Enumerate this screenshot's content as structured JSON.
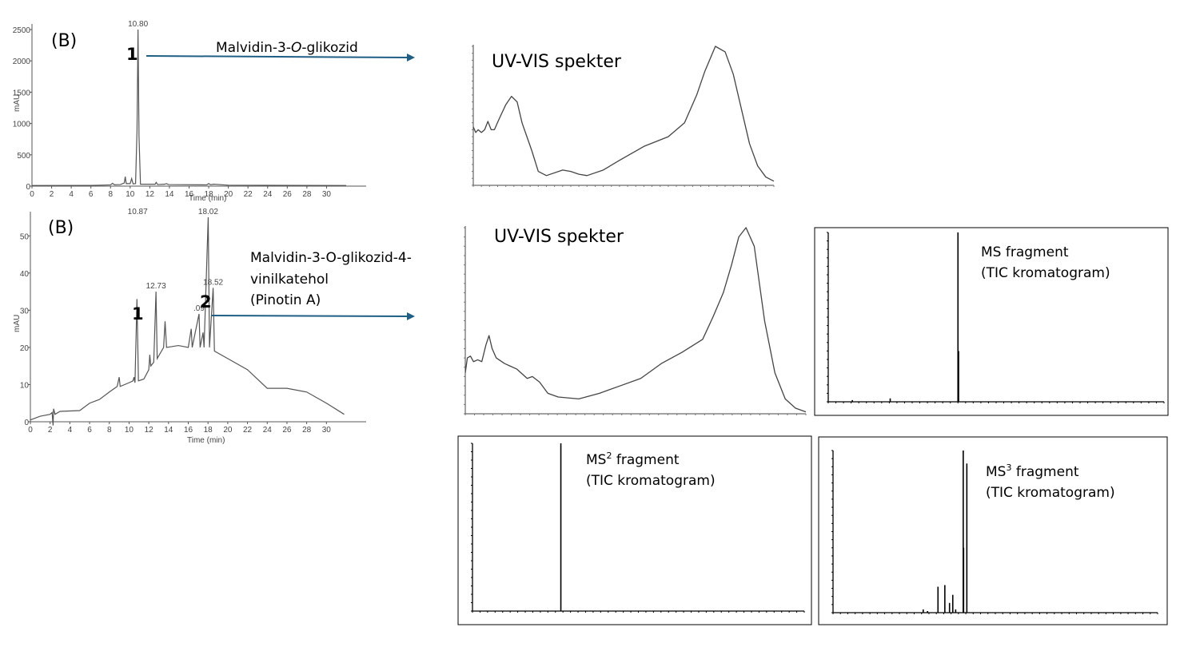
{
  "colors": {
    "arrow": "#1f5f85",
    "trace": "#555555",
    "spectrum": "#000000"
  },
  "chart_data": [
    {
      "id": "chrom1",
      "type": "line",
      "panel_label": "(B)",
      "ylabel": "mAU",
      "xlabel": "Time (min)",
      "xlim": [
        0,
        32
      ],
      "ylim": [
        0,
        2500
      ],
      "xticks": [
        0,
        2,
        4,
        6,
        8,
        10,
        12,
        14,
        16,
        18,
        20,
        22,
        24,
        26,
        28,
        30
      ],
      "yticks": [
        0,
        500,
        1000,
        1500,
        2000,
        2500
      ],
      "peak_labels": [
        {
          "x": 10.8,
          "text": "10.80"
        }
      ],
      "annotations": [
        {
          "marker": "1",
          "text_prefix": "Malvidin-3-",
          "text_italic": "O",
          "text_suffix": "-glikozid"
        }
      ],
      "x": [
        0,
        6,
        7,
        8,
        8.2,
        8.4,
        9,
        9.4,
        9.5,
        9.6,
        10,
        10.15,
        10.3,
        10.55,
        10.7,
        10.8,
        10.9,
        11.05,
        12,
        12.55,
        12.65,
        12.8,
        13.5,
        13.7,
        13.9,
        17.8,
        18,
        18.2,
        18.5,
        20,
        32
      ],
      "y": [
        10,
        12,
        15,
        20,
        45,
        22,
        25,
        50,
        150,
        40,
        40,
        120,
        35,
        40,
        900,
        2500,
        800,
        30,
        30,
        30,
        60,
        25,
        30,
        40,
        25,
        20,
        40,
        22,
        30,
        15,
        10
      ]
    },
    {
      "id": "chrom2",
      "type": "line",
      "panel_label": "(B)",
      "ylabel": "mAU",
      "xlabel": "Time (min)",
      "xlim": [
        0,
        32
      ],
      "ylim": [
        0,
        55
      ],
      "xticks": [
        0,
        2,
        4,
        6,
        8,
        10,
        12,
        14,
        16,
        18,
        20,
        22,
        24,
        26,
        28,
        30
      ],
      "yticks": [
        0,
        10,
        20,
        30,
        40,
        50
      ],
      "peak_labels": [
        {
          "x": 10.87,
          "text": "10.87"
        },
        {
          "x": 12.73,
          "text": "12.73"
        },
        {
          "x": 17.09,
          "text": ".09"
        },
        {
          "x": 18.02,
          "text": "18.02"
        },
        {
          "x": 18.52,
          "text": "18.52"
        }
      ],
      "annotations": [
        {
          "marker": "1"
        },
        {
          "marker": "2",
          "lines": [
            "Malvidin-3-O-glikozid-4-",
            "vinilkatehol",
            "(Pinotin A)"
          ]
        }
      ],
      "x": [
        0,
        1,
        2,
        2.2,
        2.3,
        2.35,
        2.5,
        3,
        5,
        6,
        7,
        8,
        8.8,
        9,
        9.1,
        10,
        10.4,
        10.5,
        10.6,
        10.8,
        10.95,
        11.5,
        12,
        12.1,
        12.2,
        12.5,
        12.73,
        12.85,
        13.5,
        13.65,
        13.8,
        15,
        16,
        16.3,
        16.4,
        17.09,
        17.2,
        17.5,
        17.6,
        18.02,
        18.15,
        18.52,
        18.65,
        20,
        22,
        24,
        26,
        28,
        30,
        31.8
      ],
      "y": [
        0.5,
        1.5,
        2,
        2.5,
        -1,
        3.5,
        2,
        2.8,
        3,
        5,
        6,
        8,
        9.5,
        12,
        9.5,
        10.5,
        11,
        12,
        10.5,
        33,
        11,
        11.5,
        14,
        18,
        15,
        16,
        35,
        17,
        20,
        27,
        20,
        20.5,
        20,
        25,
        20,
        29,
        20,
        24,
        20,
        55,
        20,
        36,
        19,
        17,
        14,
        9,
        9,
        8,
        5,
        2
      ]
    },
    {
      "id": "uv1",
      "type": "line",
      "title": "UV-VIS spekter",
      "xlim": [
        230,
        600
      ],
      "ylim": [
        0,
        100
      ],
      "x": [
        230,
        233,
        236,
        240,
        244,
        248,
        252,
        256,
        262,
        270,
        277,
        284,
        290,
        296,
        302,
        310,
        320,
        340,
        350,
        360,
        370,
        390,
        410,
        440,
        470,
        490,
        505,
        515,
        528,
        540,
        550,
        560,
        570,
        580,
        590,
        600
      ],
      "y": [
        42,
        38,
        40,
        38,
        40,
        46,
        40,
        40,
        48,
        58,
        64,
        60,
        45,
        35,
        25,
        10,
        7,
        11,
        10,
        8,
        7,
        11,
        18,
        28,
        35,
        45,
        65,
        82,
        100,
        96,
        80,
        55,
        30,
        14,
        6,
        3
      ]
    },
    {
      "id": "uv2",
      "type": "line",
      "title": "UV-VIS spekter",
      "xlim": [
        240,
        570
      ],
      "ylim": [
        0,
        100
      ],
      "x": [
        240,
        242,
        245,
        248,
        252,
        256,
        260,
        263,
        266,
        270,
        278,
        290,
        300,
        305,
        312,
        320,
        330,
        350,
        370,
        390,
        410,
        430,
        450,
        470,
        480,
        490,
        498,
        505,
        512,
        520,
        530,
        540,
        550,
        560,
        570
      ],
      "y": [
        22,
        30,
        31,
        28,
        29,
        28,
        37,
        42,
        35,
        30,
        27,
        24,
        19,
        20,
        17,
        11,
        9,
        8,
        11,
        15,
        19,
        27,
        33,
        40,
        52,
        65,
        80,
        95,
        100,
        90,
        50,
        22,
        8,
        3,
        1
      ]
    },
    {
      "id": "ms1",
      "type": "bar",
      "title": "MS fragment",
      "subtitle": "(TIC kromatogram)",
      "xlim": [
        200,
        1300
      ],
      "ylim": [
        0,
        100
      ],
      "x": [
        279,
        403,
        625,
        627
      ],
      "y": [
        1,
        2,
        100,
        30
      ]
    },
    {
      "id": "ms2",
      "type": "bar",
      "title_base": "MS",
      "title_sup": "2",
      "title_rest": " fragment",
      "subtitle": "(TIC kromatogram)",
      "xlim": [
        170,
        1270
      ],
      "ylim": [
        0,
        100
      ],
      "x": [
        463
      ],
      "y": [
        100
      ]
    },
    {
      "id": "ms3",
      "type": "bar",
      "title_base": "MS",
      "title_sup": "3",
      "title_rest": " fragment",
      "subtitle": "(TIC kromatogram)",
      "xlim": [
        50,
        950
      ],
      "ylim": [
        0,
        100
      ],
      "x": [
        300,
        312,
        341,
        360,
        373,
        382,
        390,
        411,
        412,
        421
      ],
      "y": [
        2,
        1,
        16,
        17,
        6,
        11,
        2,
        100,
        40,
        92
      ]
    }
  ]
}
